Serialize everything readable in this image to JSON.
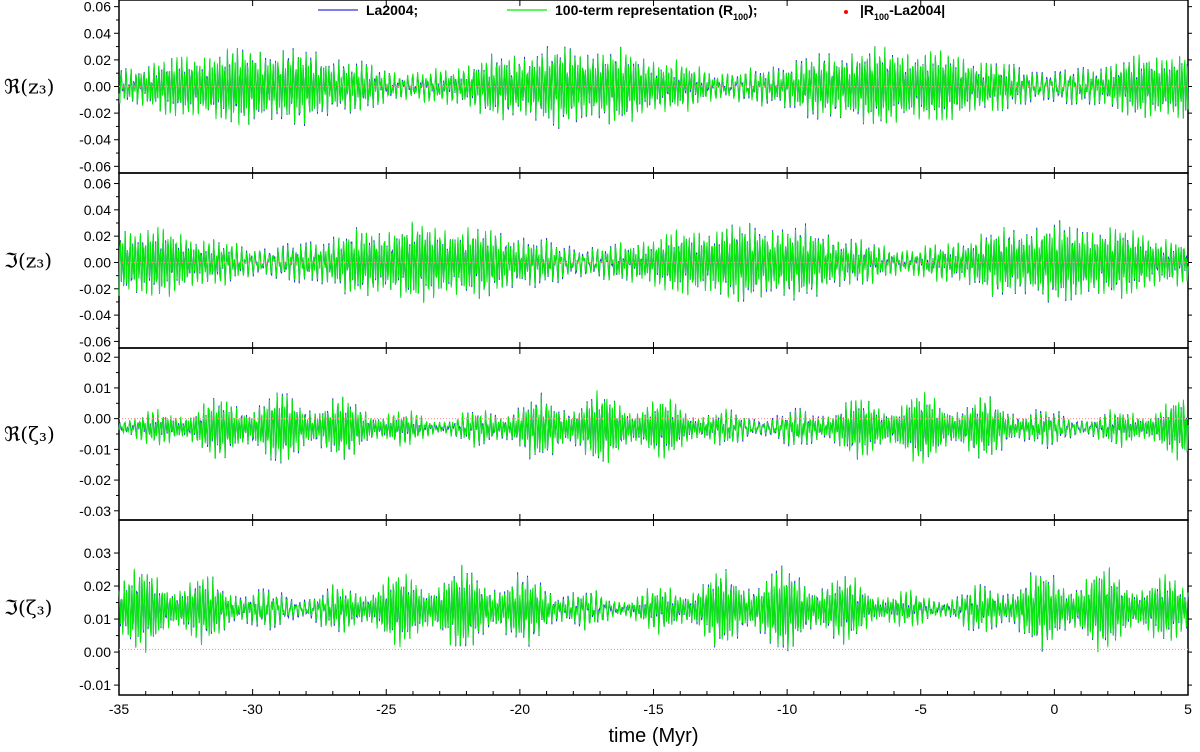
{
  "chart_data": {
    "type": "line",
    "xlabel": "time (Myr)",
    "xlim": [
      -35,
      5
    ],
    "xticks": [
      "-35",
      "-30",
      "-25",
      "-20",
      "-15",
      "-10",
      "-5",
      "0",
      "5"
    ],
    "legend": {
      "placement": "top",
      "entries": [
        {
          "label": "La2004;",
          "color": "#3333dd",
          "style": "line"
        },
        {
          "label": "100-term representation (R",
          "sub": "100",
          "suffix": ");",
          "color": "#00ee00",
          "style": "line"
        },
        {
          "label": "|R",
          "sub": "100",
          "suffix": "-La2004|",
          "color": "#ff0000",
          "style": "dot"
        }
      ]
    },
    "panels": [
      {
        "ylabel": "ℜ(z₃)",
        "ylim": [
          -0.065,
          0.065
        ],
        "yticks": [
          "0.06",
          "0.04",
          "0.02",
          "0.00",
          "-0.02",
          "-0.04",
          "-0.06"
        ],
        "mean": 0.0,
        "amplitude": 0.028,
        "series": [
          {
            "name": "La2004",
            "color": "#3333dd"
          },
          {
            "name": "100-term representation (R100)",
            "color": "#00ee00"
          },
          {
            "name": "|R100-La2004|",
            "color": "#ff9999",
            "level": 0.0
          }
        ]
      },
      {
        "ylabel": "ℑ(z₃)",
        "ylim": [
          -0.065,
          0.068
        ],
        "yticks": [
          "0.06",
          "0.04",
          "0.02",
          "0.00",
          "-0.02",
          "-0.04",
          "-0.06"
        ],
        "mean": 0.0,
        "amplitude": 0.028,
        "series": [
          {
            "name": "La2004",
            "color": "#3333dd"
          },
          {
            "name": "100-term representation (R100)",
            "color": "#00ee00"
          },
          {
            "name": "|R100-La2004|",
            "color": "#ff9999",
            "level": 0.0
          }
        ]
      },
      {
        "ylabel": "ℜ(ζ₃)",
        "ylim": [
          -0.033,
          0.023
        ],
        "yticks": [
          "0.02",
          "0.01",
          "0.00",
          "-0.01",
          "-0.02",
          "-0.03"
        ],
        "mean": -0.003,
        "amplitude": 0.011,
        "series": [
          {
            "name": "La2004",
            "color": "#3333dd"
          },
          {
            "name": "100-term representation (R100)",
            "color": "#00ee00"
          },
          {
            "name": "|R100-La2004|",
            "color": "#ff9999",
            "level": 0.0
          }
        ]
      },
      {
        "ylabel": "ℑ(ζ₃)",
        "ylim": [
          -0.013,
          0.04
        ],
        "yticks": [
          "0.03",
          "0.02",
          "0.01",
          "0.00",
          "-0.01"
        ],
        "mean": 0.013,
        "amplitude": 0.012,
        "series": [
          {
            "name": "La2004",
            "color": "#3333dd"
          },
          {
            "name": "100-term representation (R100)",
            "color": "#00ee00"
          },
          {
            "name": "|R100-La2004|",
            "color": "#ff9999",
            "level": 0.0008
          }
        ]
      }
    ]
  }
}
